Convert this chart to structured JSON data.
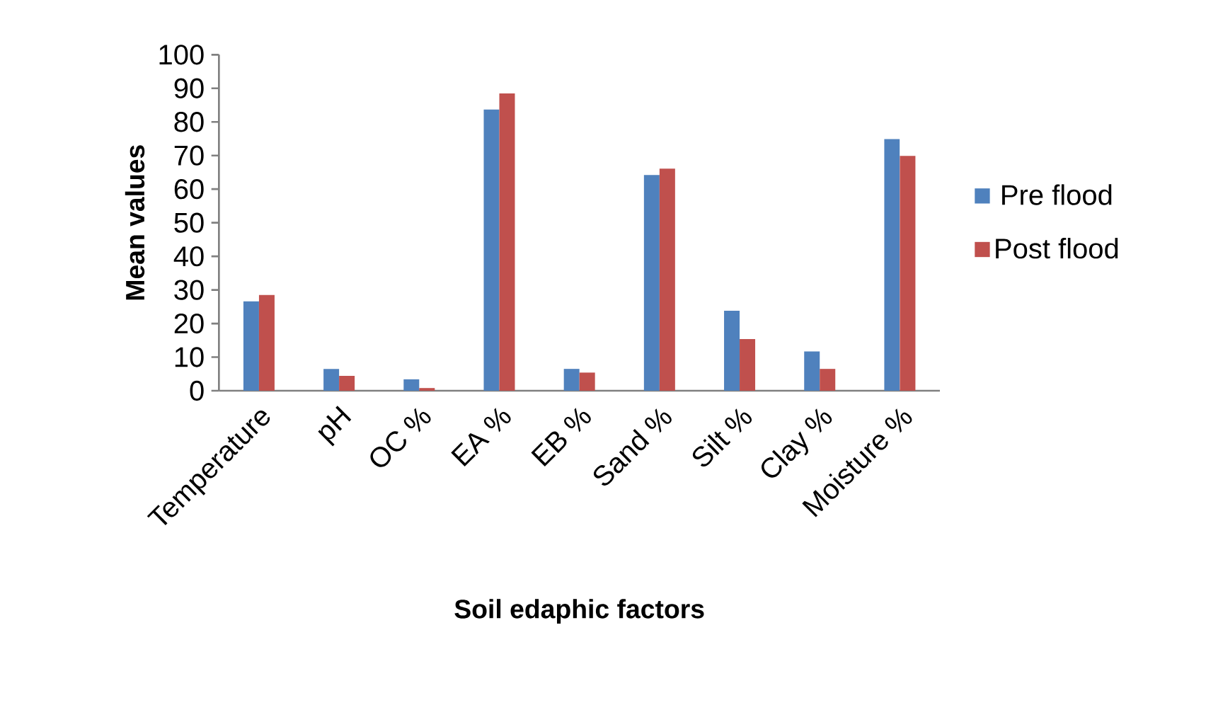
{
  "chart_data": {
    "type": "bar",
    "xlabel": "Soil edaphic factors",
    "ylabel": "Mean values",
    "categories": [
      "Temperature",
      "pH",
      "OC %",
      "EA %",
      "EB %",
      "Sand %",
      "Silt %",
      "Clay %",
      "Moisture %"
    ],
    "series": [
      {
        "name": "Pre flood",
        "color": "#4f81bd",
        "values": [
          26.6,
          6.5,
          3.4,
          83.7,
          6.5,
          64.2,
          23.8,
          11.7,
          74.9
        ]
      },
      {
        "name": "Post flood",
        "color": "#c0504d",
        "values": [
          28.5,
          4.4,
          0.8,
          88.5,
          5.4,
          66.1,
          15.4,
          6.5,
          69.9
        ]
      }
    ],
    "ylim": [
      0,
      100
    ],
    "yticks": [
      0,
      10,
      20,
      30,
      40,
      50,
      60,
      70,
      80,
      90,
      100
    ],
    "legend": "right"
  }
}
